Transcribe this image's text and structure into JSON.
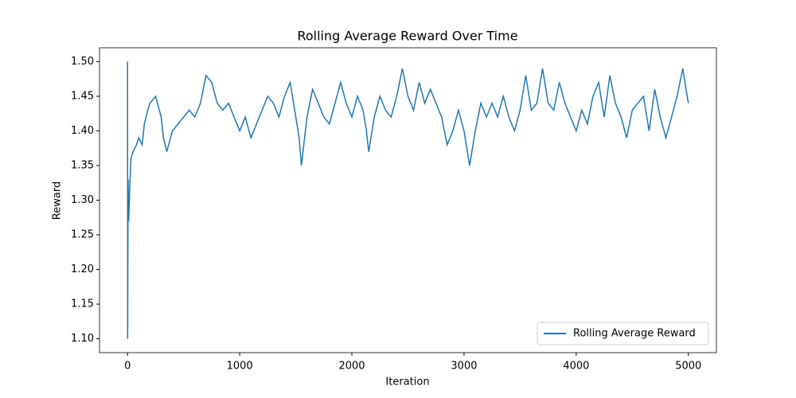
{
  "chart_data": {
    "type": "line",
    "title": "Rolling Average Reward Over Time",
    "x_label": "Iteration",
    "y_label": "Reward",
    "legend": "lower right",
    "grid": false,
    "xlim": [
      -250,
      5250
    ],
    "xticks": [
      0,
      1000,
      2000,
      3000,
      4000,
      5000
    ],
    "ylim": [
      1.08,
      1.52
    ],
    "yticks": [
      {
        "value": 1.1,
        "label": "1.10"
      },
      1.15,
      {
        "value": 1.2,
        "label": "1.20"
      },
      1.25,
      {
        "value": 1.3,
        "label": "1.30"
      },
      1.35,
      {
        "value": 1.4,
        "label": "1.40"
      },
      1.45,
      {
        "value": 1.5,
        "label": "1.50"
      }
    ],
    "x": [
      0,
      1,
      5,
      10,
      20,
      30,
      50,
      80,
      100,
      130,
      150,
      180,
      200,
      250,
      300,
      320,
      350,
      400,
      450,
      500,
      550,
      600,
      650,
      700,
      750,
      800,
      850,
      900,
      950,
      1000,
      1050,
      1100,
      1150,
      1200,
      1250,
      1300,
      1350,
      1400,
      1450,
      1500,
      1530,
      1550,
      1600,
      1650,
      1700,
      1750,
      1800,
      1850,
      1900,
      1950,
      2000,
      2050,
      2100,
      2130,
      2150,
      2200,
      2250,
      2300,
      2350,
      2400,
      2450,
      2500,
      2550,
      2600,
      2650,
      2700,
      2750,
      2800,
      2850,
      2900,
      2950,
      3000,
      3050,
      3100,
      3150,
      3200,
      3250,
      3300,
      3350,
      3400,
      3450,
      3500,
      3550,
      3600,
      3650,
      3700,
      3750,
      3800,
      3850,
      3900,
      3950,
      4000,
      4050,
      4100,
      4150,
      4200,
      4250,
      4300,
      4350,
      4400,
      4450,
      4500,
      4550,
      4600,
      4650,
      4700,
      4750,
      4800,
      4850,
      4900,
      4950,
      4970,
      5000
    ],
    "series": [
      {
        "name": "Rolling Average Reward",
        "color": "#1f77b4",
        "values": [
          1.5,
          1.1,
          1.33,
          1.27,
          1.32,
          1.36,
          1.37,
          1.38,
          1.39,
          1.38,
          1.41,
          1.43,
          1.44,
          1.45,
          1.42,
          1.39,
          1.37,
          1.4,
          1.41,
          1.42,
          1.43,
          1.42,
          1.44,
          1.48,
          1.47,
          1.44,
          1.43,
          1.44,
          1.42,
          1.4,
          1.42,
          1.39,
          1.41,
          1.43,
          1.45,
          1.44,
          1.42,
          1.45,
          1.47,
          1.42,
          1.39,
          1.35,
          1.42,
          1.46,
          1.44,
          1.42,
          1.41,
          1.44,
          1.47,
          1.44,
          1.42,
          1.45,
          1.43,
          1.4,
          1.37,
          1.42,
          1.45,
          1.43,
          1.42,
          1.45,
          1.49,
          1.45,
          1.43,
          1.47,
          1.44,
          1.46,
          1.44,
          1.42,
          1.38,
          1.4,
          1.43,
          1.4,
          1.35,
          1.4,
          1.44,
          1.42,
          1.44,
          1.42,
          1.45,
          1.42,
          1.4,
          1.43,
          1.48,
          1.43,
          1.44,
          1.49,
          1.44,
          1.43,
          1.47,
          1.44,
          1.42,
          1.4,
          1.43,
          1.41,
          1.45,
          1.47,
          1.42,
          1.48,
          1.44,
          1.42,
          1.39,
          1.43,
          1.44,
          1.45,
          1.4,
          1.46,
          1.42,
          1.39,
          1.42,
          1.45,
          1.49,
          1.47,
          1.44
        ]
      }
    ]
  }
}
